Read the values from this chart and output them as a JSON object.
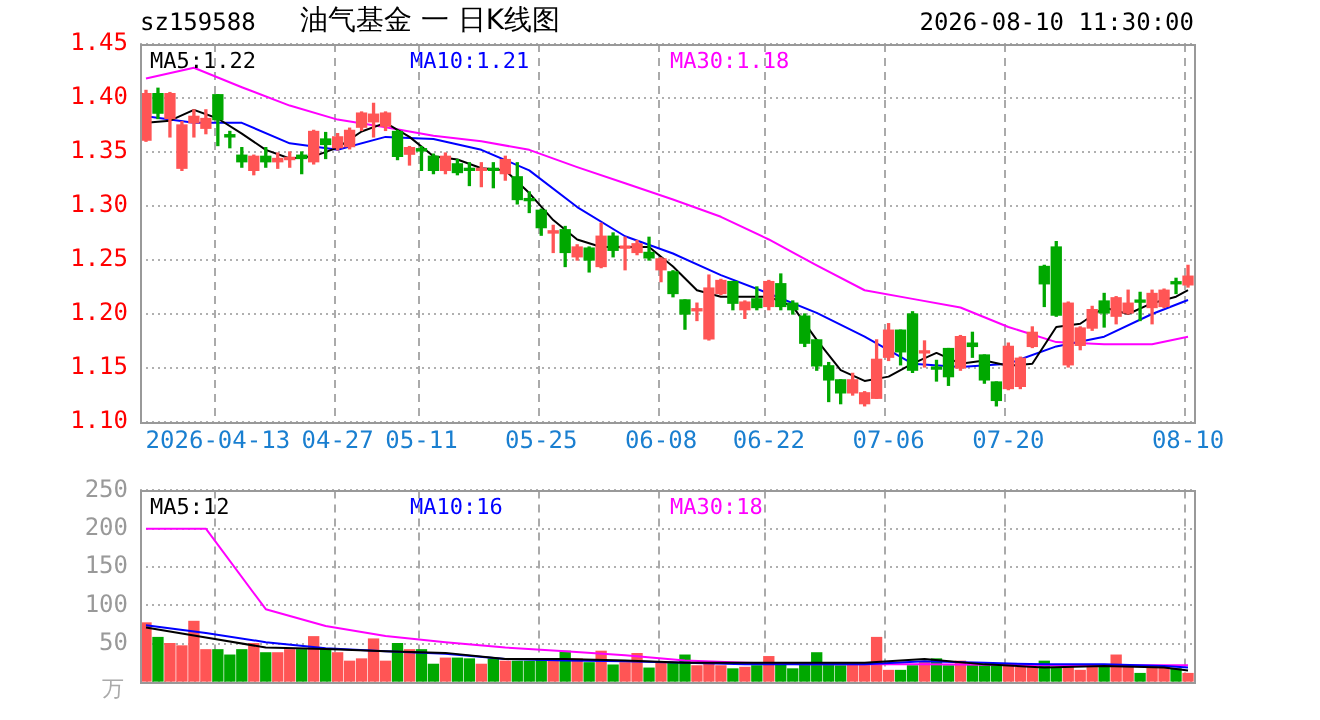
{
  "chart_data": [
    {
      "type": "candlestick",
      "title": "油气基金 一 日K线图",
      "subtitle": "sz159588",
      "annotations": [
        "2026-08-10 11:30:00"
      ],
      "categories": [
        null,
        null,
        null,
        null,
        null,
        null,
        "2026-04-13",
        null,
        null,
        null,
        null,
        null,
        null,
        null,
        null,
        null,
        "04-27",
        null,
        null,
        null,
        null,
        null,
        null,
        "05-11",
        null,
        null,
        null,
        null,
        null,
        null,
        null,
        null,
        null,
        "05-25",
        null,
        null,
        null,
        null,
        null,
        null,
        null,
        null,
        null,
        "06-08",
        null,
        null,
        null,
        null,
        null,
        null,
        null,
        null,
        "06-22",
        null,
        null,
        null,
        null,
        null,
        null,
        null,
        null,
        null,
        "07-06",
        null,
        null,
        null,
        null,
        null,
        null,
        null,
        null,
        null,
        "07-20",
        null,
        null,
        null,
        null,
        null,
        null,
        null,
        null,
        null,
        null,
        null,
        null,
        null,
        null,
        "08-10"
      ],
      "ohlc": [
        [
          1.361,
          1.407,
          1.36,
          1.404
        ],
        [
          1.404,
          1.409,
          1.381,
          1.386
        ],
        [
          1.381,
          1.405,
          1.364,
          1.404
        ],
        [
          1.335,
          1.378,
          1.333,
          1.375
        ],
        [
          1.377,
          1.389,
          1.364,
          1.383
        ],
        [
          1.372,
          1.389,
          1.367,
          1.381
        ],
        [
          1.403,
          1.403,
          1.356,
          1.38
        ],
        [
          1.366,
          1.369,
          1.354,
          1.364
        ],
        [
          1.347,
          1.354,
          1.336,
          1.341
        ],
        [
          1.333,
          1.347,
          1.329,
          1.346
        ],
        [
          1.346,
          1.354,
          1.336,
          1.341
        ],
        [
          1.341,
          1.349,
          1.335,
          1.344
        ],
        [
          1.343,
          1.35,
          1.336,
          1.345
        ],
        [
          1.347,
          1.35,
          1.33,
          1.344
        ],
        [
          1.341,
          1.37,
          1.339,
          1.369
        ],
        [
          1.362,
          1.368,
          1.344,
          1.357
        ],
        [
          1.354,
          1.367,
          1.352,
          1.364
        ],
        [
          1.355,
          1.372,
          1.353,
          1.37
        ],
        [
          1.373,
          1.387,
          1.37,
          1.386
        ],
        [
          1.378,
          1.395,
          1.364,
          1.385
        ],
        [
          1.374,
          1.387,
          1.37,
          1.386
        ],
        [
          1.369,
          1.37,
          1.343,
          1.346
        ],
        [
          1.348,
          1.355,
          1.338,
          1.354
        ],
        [
          1.353,
          1.355,
          1.333,
          1.351
        ],
        [
          1.346,
          1.348,
          1.33,
          1.333
        ],
        [
          1.333,
          1.349,
          1.33,
          1.346
        ],
        [
          1.339,
          1.343,
          1.329,
          1.331
        ],
        [
          1.334,
          1.34,
          1.319,
          1.333
        ],
        [
          1.333,
          1.34,
          1.318,
          1.334
        ],
        [
          1.334,
          1.34,
          1.317,
          1.333
        ],
        [
          1.33,
          1.346,
          1.324,
          1.343
        ],
        [
          1.327,
          1.34,
          1.302,
          1.306
        ],
        [
          1.306,
          1.313,
          1.294,
          1.305
        ],
        [
          1.296,
          1.297,
          1.273,
          1.28
        ],
        [
          1.275,
          1.282,
          1.257,
          1.277
        ],
        [
          1.278,
          1.281,
          1.244,
          1.257
        ],
        [
          1.253,
          1.264,
          1.25,
          1.262
        ],
        [
          1.261,
          1.262,
          1.239,
          1.25
        ],
        [
          1.244,
          1.284,
          1.243,
          1.272
        ],
        [
          1.272,
          1.275,
          1.253,
          1.259
        ],
        [
          1.261,
          1.271,
          1.241,
          1.262
        ],
        [
          1.257,
          1.268,
          1.255,
          1.265
        ],
        [
          1.257,
          1.271,
          1.25,
          1.252
        ],
        [
          1.241,
          1.252,
          1.23,
          1.251
        ],
        [
          1.239,
          1.24,
          1.216,
          1.219
        ],
        [
          1.213,
          1.213,
          1.186,
          1.2
        ],
        [
          1.203,
          1.21,
          1.194,
          1.204
        ],
        [
          1.177,
          1.236,
          1.176,
          1.224
        ],
        [
          1.219,
          1.232,
          1.218,
          1.231
        ],
        [
          1.23,
          1.23,
          1.204,
          1.21
        ],
        [
          1.204,
          1.212,
          1.196,
          1.211
        ],
        [
          1.214,
          1.225,
          1.204,
          1.206
        ],
        [
          1.207,
          1.231,
          1.204,
          1.23
        ],
        [
          1.228,
          1.237,
          1.204,
          1.207
        ],
        [
          1.21,
          1.212,
          1.2,
          1.204
        ],
        [
          1.198,
          1.2,
          1.17,
          1.173
        ],
        [
          1.176,
          1.176,
          1.148,
          1.152
        ],
        [
          1.152,
          1.155,
          1.119,
          1.139
        ],
        [
          1.139,
          1.139,
          1.117,
          1.127
        ],
        [
          1.127,
          1.145,
          1.125,
          1.139
        ],
        [
          1.117,
          1.128,
          1.115,
          1.127
        ],
        [
          1.122,
          1.176,
          1.122,
          1.158
        ],
        [
          1.16,
          1.191,
          1.157,
          1.185
        ],
        [
          1.185,
          1.185,
          1.153,
          1.165
        ],
        [
          1.2,
          1.202,
          1.146,
          1.148
        ],
        [
          1.164,
          1.175,
          1.151,
          1.165
        ],
        [
          1.15,
          1.157,
          1.138,
          1.149
        ],
        [
          1.168,
          1.168,
          1.134,
          1.142
        ],
        [
          1.15,
          1.18,
          1.148,
          1.179
        ],
        [
          1.173,
          1.183,
          1.16,
          1.17
        ],
        [
          1.162,
          1.162,
          1.136,
          1.139
        ],
        [
          1.137,
          1.137,
          1.115,
          1.12
        ],
        [
          1.131,
          1.173,
          1.13,
          1.17
        ],
        [
          1.133,
          1.16,
          1.131,
          1.159
        ],
        [
          1.17,
          1.188,
          1.169,
          1.183
        ],
        [
          1.244,
          1.245,
          1.207,
          1.228
        ],
        [
          1.262,
          1.267,
          1.198,
          1.199
        ],
        [
          1.153,
          1.211,
          1.151,
          1.21
        ],
        [
          1.171,
          1.188,
          1.167,
          1.187
        ],
        [
          1.187,
          1.207,
          1.185,
          1.204
        ],
        [
          1.212,
          1.219,
          1.188,
          1.201
        ],
        [
          1.198,
          1.216,
          1.191,
          1.215
        ],
        [
          1.201,
          1.222,
          1.2,
          1.21
        ],
        [
          1.212,
          1.22,
          1.194,
          1.211
        ],
        [
          1.206,
          1.222,
          1.191,
          1.219
        ],
        [
          1.207,
          1.223,
          1.206,
          1.222
        ],
        [
          1.229,
          1.233,
          1.219,
          1.228
        ],
        [
          1.227,
          1.245,
          1.225,
          1.235
        ]
      ],
      "series": [
        {
          "type": "line",
          "name": "MA5:1.22",
          "color": "#000000",
          "values": [
            1.377,
            null,
            1.379,
            null,
            1.389,
            null,
            1.381,
            null,
            1.367,
            null,
            1.352,
            null,
            1.344,
            null,
            1.346,
            null,
            1.354,
            null,
            1.369,
            null,
            1.377,
            null,
            1.364,
            null,
            1.346,
            null,
            1.343,
            null,
            1.335,
            null,
            1.333,
            null,
            1.312,
            null,
            1.287,
            null,
            1.269,
            null,
            1.262,
            null,
            null,
            null,
            1.262,
            null,
            1.244,
            null,
            1.222,
            null,
            1.216,
            null,
            1.216,
            null,
            1.216,
            null,
            1.207,
            null,
            1.176,
            null,
            1.148,
            null,
            1.138,
            null,
            1.142,
            null,
            1.154,
            null,
            1.164,
            null,
            1.154,
            null,
            1.157,
            null,
            1.152,
            null,
            1.154,
            null,
            1.188,
            null,
            1.191,
            null,
            1.206,
            null,
            1.2,
            null,
            1.21,
            null,
            1.216,
            1.222
          ]
        },
        {
          "type": "line",
          "name": "MA10:1.21",
          "color": "#0000ff",
          "values": [
            1.383,
            null,
            null,
            null,
            1.377,
            null,
            null,
            null,
            1.377,
            null,
            null,
            null,
            1.358,
            null,
            null,
            null,
            1.352,
            null,
            null,
            null,
            1.364,
            null,
            null,
            null,
            1.362,
            null,
            null,
            null,
            1.352,
            null,
            null,
            null,
            1.333,
            null,
            null,
            null,
            1.299,
            null,
            null,
            null,
            1.272,
            null,
            null,
            null,
            1.256,
            null,
            null,
            null,
            1.236,
            null,
            null,
            null,
            1.219,
            null,
            null,
            null,
            1.201,
            null,
            null,
            null,
            1.179,
            null,
            null,
            null,
            1.154,
            null,
            null,
            null,
            1.151,
            null,
            null,
            null,
            1.154,
            null,
            null,
            null,
            1.17,
            null,
            null,
            null,
            1.179,
            null,
            null,
            null,
            1.2,
            null,
            null,
            1.213
          ]
        },
        {
          "type": "line",
          "name": "MA30:1.18",
          "color": "#ff00ff",
          "values": [
            1.418,
            null,
            null,
            null,
            1.428,
            null,
            null,
            null,
            1.41,
            null,
            null,
            null,
            1.393,
            null,
            null,
            null,
            1.38,
            null,
            null,
            null,
            1.373,
            null,
            null,
            null,
            1.365,
            null,
            null,
            null,
            1.36,
            null,
            null,
            null,
            1.352,
            null,
            null,
            null,
            1.336,
            null,
            null,
            null,
            1.321,
            null,
            null,
            null,
            1.306,
            null,
            null,
            null,
            1.29,
            null,
            null,
            null,
            1.269,
            null,
            null,
            null,
            1.245,
            null,
            null,
            null,
            1.222,
            null,
            null,
            null,
            1.214,
            null,
            null,
            null,
            1.206,
            null,
            null,
            null,
            1.188,
            null,
            null,
            null,
            1.174,
            null,
            null,
            null,
            1.172,
            null,
            null,
            null,
            1.172,
            null,
            null,
            1.179
          ]
        }
      ],
      "ylim": [
        1.1,
        1.45
      ],
      "yticks": [
        {
          "value": 1.1,
          "label": "1.10"
        },
        1.15,
        {
          "value": 1.2,
          "label": "1.20"
        },
        1.25,
        {
          "value": 1.3,
          "label": "1.30"
        },
        1.35,
        {
          "value": 1.4,
          "label": "1.40"
        },
        1.45
      ],
      "grid": true,
      "legend": "top"
    },
    {
      "type": "bar",
      "ylabel": "万",
      "categories": [
        null,
        null,
        null,
        null,
        null,
        null,
        null,
        null,
        null,
        null,
        null,
        null,
        null,
        null,
        null,
        null,
        null,
        null,
        null,
        null,
        null,
        null,
        null,
        null,
        null,
        null,
        null,
        null,
        null,
        null,
        null,
        null,
        null,
        null,
        null,
        null,
        null,
        null,
        null,
        null,
        null,
        null,
        null,
        null,
        null,
        null,
        null,
        null,
        null,
        null,
        null,
        null,
        null,
        null,
        null,
        null,
        null,
        null,
        null,
        null,
        null,
        null,
        null,
        null,
        null,
        null,
        null,
        null,
        null,
        null,
        null,
        null,
        null,
        null,
        null,
        null,
        null,
        null,
        null,
        null,
        null,
        null,
        null,
        null,
        null,
        null,
        null,
        null
      ],
      "values": [
        77,
        58,
        50,
        47,
        79,
        42,
        42,
        35,
        42,
        50,
        38,
        38,
        42,
        42,
        59,
        42,
        38,
        27,
        30,
        56,
        27,
        50,
        42,
        42,
        23,
        31,
        31,
        30,
        23,
        30,
        27,
        27,
        27,
        30,
        30,
        40,
        30,
        25,
        40,
        22,
        25,
        37,
        18,
        25,
        25,
        35,
        21,
        25,
        21,
        17,
        19,
        21,
        33,
        23,
        17,
        25,
        38,
        25,
        21,
        23,
        23,
        58,
        15,
        15,
        21,
        25,
        30,
        21,
        27,
        23,
        23,
        21,
        21,
        19,
        19,
        27,
        19,
        21,
        15,
        21,
        21,
        35,
        21,
        11,
        21,
        21,
        17,
        11
      ],
      "colors": [
        "#ff5555",
        "#00a800",
        "#ff5555",
        "#ff5555",
        "#ff5555",
        "#ff5555",
        "#00a800",
        "#00a800",
        "#00a800",
        "#ff5555",
        "#00a800",
        "#ff5555",
        "#ff5555",
        "#00a800",
        "#ff5555",
        "#00a800",
        "#ff5555",
        "#ff5555",
        "#ff5555",
        "#ff5555",
        "#ff5555",
        "#00a800",
        "#ff5555",
        "#00a800",
        "#00a800",
        "#ff5555",
        "#00a800",
        "#00a800",
        "#ff5555",
        "#00a800",
        "#ff5555",
        "#00a800",
        "#00a800",
        "#00a800",
        "#ff5555",
        "#00a800",
        "#ff5555",
        "#00a800",
        "#ff5555",
        "#00a800",
        "#ff5555",
        "#ff5555",
        "#00a800",
        "#ff5555",
        "#00a800",
        "#00a800",
        "#ff5555",
        "#ff5555",
        "#ff5555",
        "#00a800",
        "#ff5555",
        "#00a800",
        "#ff5555",
        "#00a800",
        "#00a800",
        "#00a800",
        "#00a800",
        "#00a800",
        "#00a800",
        "#ff5555",
        "#ff5555",
        "#ff5555",
        "#ff5555",
        "#00a800",
        "#00a800",
        "#ff5555",
        "#00a800",
        "#00a800",
        "#ff5555",
        "#00a800",
        "#00a800",
        "#00a800",
        "#ff5555",
        "#ff5555",
        "#ff5555",
        "#00a800",
        "#00a800",
        "#ff5555",
        "#ff5555",
        "#ff5555",
        "#00a800",
        "#ff5555",
        "#ff5555",
        "#00a800",
        "#ff5555",
        "#ff5555",
        "#00a800",
        "#ff5555"
      ],
      "series": [
        {
          "type": "line",
          "name": "MA5:12",
          "color": "#000000",
          "values": [
            71,
            null,
            null,
            null,
            null,
            58,
            null,
            null,
            null,
            null,
            45,
            null,
            null,
            null,
            null,
            43,
            null,
            null,
            null,
            null,
            40,
            null,
            null,
            null,
            null,
            38,
            null,
            null,
            null,
            null,
            30,
            null,
            null,
            null,
            null,
            30,
            null,
            null,
            null,
            null,
            28,
            null,
            null,
            null,
            null,
            25,
            null,
            null,
            null,
            null,
            25,
            null,
            null,
            null,
            null,
            25,
            null,
            null,
            null,
            null,
            25,
            null,
            null,
            null,
            null,
            30,
            null,
            null,
            null,
            null,
            23,
            null,
            null,
            null,
            null,
            19,
            null,
            null,
            null,
            null,
            21,
            null,
            null,
            null,
            null,
            19,
            null,
            15
          ]
        },
        {
          "type": "line",
          "name": "MA10:16",
          "color": "#0000ff",
          "values": [
            74,
            null,
            null,
            null,
            null,
            64,
            null,
            null,
            null,
            null,
            52,
            null,
            null,
            null,
            null,
            44,
            null,
            null,
            null,
            null,
            40,
            null,
            null,
            null,
            null,
            37,
            null,
            null,
            null,
            null,
            30,
            null,
            null,
            null,
            null,
            28,
            null,
            null,
            null,
            null,
            27,
            null,
            null,
            null,
            null,
            25,
            null,
            null,
            null,
            null,
            23,
            null,
            null,
            null,
            null,
            23,
            null,
            null,
            null,
            null,
            23,
            null,
            null,
            null,
            null,
            27,
            null,
            null,
            null,
            null,
            25,
            null,
            null,
            null,
            null,
            23,
            null,
            null,
            null,
            null,
            23,
            null,
            null,
            null,
            null,
            21,
            null,
            19
          ]
        },
        {
          "type": "line",
          "name": "MA30:18",
          "color": "#ff00ff",
          "values": [
            200,
            null,
            null,
            null,
            null,
            200,
            null,
            null,
            null,
            null,
            95,
            null,
            null,
            null,
            null,
            73,
            null,
            null,
            null,
            null,
            60,
            null,
            null,
            null,
            null,
            52,
            null,
            null,
            null,
            null,
            45,
            null,
            null,
            null,
            null,
            40,
            null,
            null,
            null,
            null,
            35,
            null,
            null,
            null,
            null,
            28,
            null,
            null,
            null,
            null,
            25,
            null,
            null,
            null,
            null,
            23,
            null,
            null,
            null,
            null,
            23,
            null,
            null,
            null,
            null,
            23,
            null,
            null,
            null,
            null,
            null,
            null,
            null,
            null,
            null,
            22,
            null,
            null,
            null,
            null,
            null,
            null,
            null,
            null,
            null,
            22,
            null,
            22
          ]
        }
      ],
      "ylim": [
        0,
        250
      ],
      "yticks": [
        {
          "value": 0,
          "label": null
        },
        50,
        100,
        150,
        200,
        250
      ],
      "grid": true,
      "legend": "top",
      "tick_labels": "y"
    }
  ]
}
